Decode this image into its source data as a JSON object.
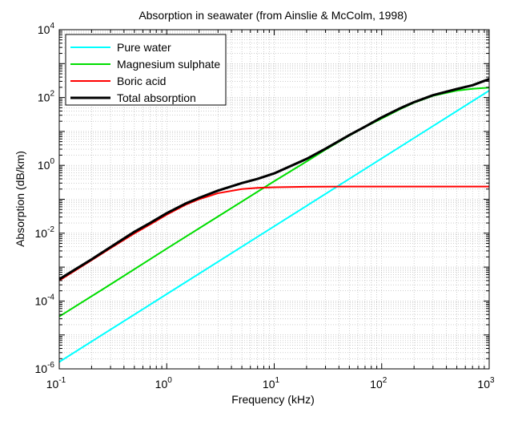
{
  "chart_data": {
    "type": "line",
    "title": "Absorption in seawater (from Ainslie & McColm, 1998)",
    "xlabel": "Frequency (kHz)",
    "ylabel": "Absorption (dB/km)",
    "xscale": "log",
    "yscale": "log",
    "xlim": [
      0.1,
      1000
    ],
    "ylim": [
      1e-06,
      10000
    ],
    "grid": true,
    "legend_position": "top-left",
    "x_ticks": [
      {
        "value": 0.1,
        "base": "10",
        "exp": "-1"
      },
      {
        "value": 1,
        "base": "10",
        "exp": "0"
      },
      {
        "value": 10,
        "base": "10",
        "exp": "1"
      },
      {
        "value": 100,
        "base": "10",
        "exp": "2"
      },
      {
        "value": 1000,
        "base": "10",
        "exp": "3"
      }
    ],
    "y_ticks": [
      {
        "value": 1e-06,
        "base": "10",
        "exp": "-6"
      },
      {
        "value": 0.0001,
        "base": "10",
        "exp": "-4"
      },
      {
        "value": 0.01,
        "base": "10",
        "exp": "-2"
      },
      {
        "value": 1,
        "base": "10",
        "exp": "0"
      },
      {
        "value": 100,
        "base": "10",
        "exp": "2"
      },
      {
        "value": 10000,
        "base": "10",
        "exp": "4"
      }
    ],
    "series": [
      {
        "name": "Pure water",
        "color": "#00ffff",
        "x": [
          0.1,
          1,
          10,
          100,
          1000
        ],
        "y": [
          1.6e-06,
          0.00016,
          0.016,
          1.6,
          160
        ]
      },
      {
        "name": "Magnesium sulphate",
        "color": "#00dd00",
        "x": [
          0.1,
          0.3,
          1,
          3,
          10,
          20,
          30,
          50,
          70,
          100,
          150,
          200,
          300,
          500,
          700,
          1000
        ],
        "y": [
          3.5e-05,
          0.00031,
          0.0035,
          0.031,
          0.34,
          1.3,
          2.9,
          7.5,
          13.5,
          24,
          46,
          70,
          112,
          160,
          180,
          196
        ]
      },
      {
        "name": "Boric acid",
        "color": "#ff0000",
        "x": [
          0.1,
          0.2,
          0.3,
          0.5,
          0.7,
          1,
          1.5,
          2,
          3,
          5,
          7,
          10,
          20,
          50,
          100,
          1000
        ],
        "y": [
          0.0004,
          0.0016,
          0.0036,
          0.0098,
          0.018,
          0.035,
          0.069,
          0.1,
          0.151,
          0.2,
          0.217,
          0.227,
          0.234,
          0.237,
          0.238,
          0.238
        ]
      },
      {
        "name": "Total absorption",
        "color": "#000000",
        "x": [
          0.1,
          0.2,
          0.3,
          0.5,
          0.7,
          1,
          1.5,
          2,
          3,
          5,
          7,
          10,
          20,
          30,
          50,
          70,
          100,
          150,
          200,
          300,
          500,
          700,
          1000
        ],
        "y": [
          0.00044,
          0.0017,
          0.0039,
          0.011,
          0.02,
          0.039,
          0.075,
          0.11,
          0.18,
          0.3,
          0.4,
          0.58,
          1.55,
          3.1,
          7.8,
          13.8,
          26,
          49,
          73,
          117,
          178,
          230,
          350
        ]
      }
    ]
  }
}
